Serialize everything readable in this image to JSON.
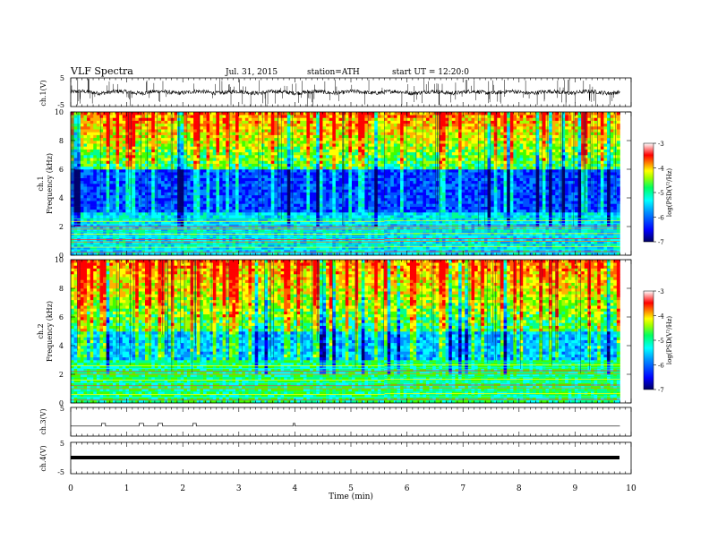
{
  "header": {
    "title": "VLF Spectra",
    "date": "Jul. 31, 2015",
    "station": "station=ATH",
    "start": "start UT = 12:20:0"
  },
  "chart_data": [
    {
      "type": "line",
      "name": "ch1-waveform",
      "ylabel": "ch.1(V)",
      "ylim": [
        -5,
        5
      ],
      "yticks": [
        "5",
        "-5"
      ],
      "baseline": 0,
      "noise_description": "dense broadband noise with spikes"
    },
    {
      "type": "heatmap",
      "name": "ch1-spectrogram",
      "ylabel_channel": "ch.1",
      "ylabel": "Frequency (kHz)",
      "ylim": [
        0,
        10
      ],
      "yticks": [
        "0",
        "2",
        "4",
        "6",
        "8",
        "10"
      ],
      "xlim": [
        0,
        9.8
      ],
      "band_change_time": 5.6,
      "colorbar": {
        "label": "log(PSD(V²/Hz)",
        "range": [
          -7,
          -3
        ],
        "ticks": [
          "-3",
          "-4",
          "-5",
          "-6",
          "-7"
        ]
      },
      "colors": [
        "#000080",
        "#0000ff",
        "#0080ff",
        "#00ffff",
        "#00ff80",
        "#80ff00",
        "#ffff00",
        "#ff8000",
        "#ff0000",
        "#ffffff"
      ]
    },
    {
      "type": "heatmap",
      "name": "ch2-spectrogram",
      "ylabel_channel": "ch.2",
      "ylabel": "Frequency (kHz)",
      "ylim": [
        0,
        10
      ],
      "yticks": [
        "0",
        "2",
        "4",
        "6",
        "8",
        "10"
      ],
      "xlim": [
        0,
        9.8
      ],
      "band_change_time": 5.6,
      "colorbar": {
        "label": "log(PSD(V²/Hz)",
        "range": [
          -7,
          -3
        ],
        "ticks": [
          "-3",
          "-4",
          "-5",
          "-6",
          "-7"
        ]
      }
    },
    {
      "type": "line",
      "name": "ch3-waveform",
      "ylabel": "ch.3(V)",
      "ylim": [
        -5,
        5
      ],
      "yticks": [
        "5"
      ],
      "baseline": -1.5,
      "pulses": [
        {
          "start": 0.55,
          "end": 0.62
        },
        {
          "start": 1.22,
          "end": 1.3
        },
        {
          "start": 1.56,
          "end": 1.64
        },
        {
          "start": 2.18,
          "end": 2.24
        },
        {
          "start": 3.97,
          "end": 4.0
        }
      ]
    },
    {
      "type": "line",
      "name": "ch4-waveform",
      "ylabel": "ch.4(V)",
      "ylim": [
        -5,
        5
      ],
      "yticks": [
        "5",
        "-5"
      ],
      "baseline": 0
    }
  ],
  "xaxis": {
    "label": "Time (min)",
    "range": [
      0,
      10
    ],
    "ticks": [
      "0",
      "1",
      "2",
      "3",
      "4",
      "5",
      "6",
      "7",
      "8",
      "9",
      "10"
    ]
  }
}
